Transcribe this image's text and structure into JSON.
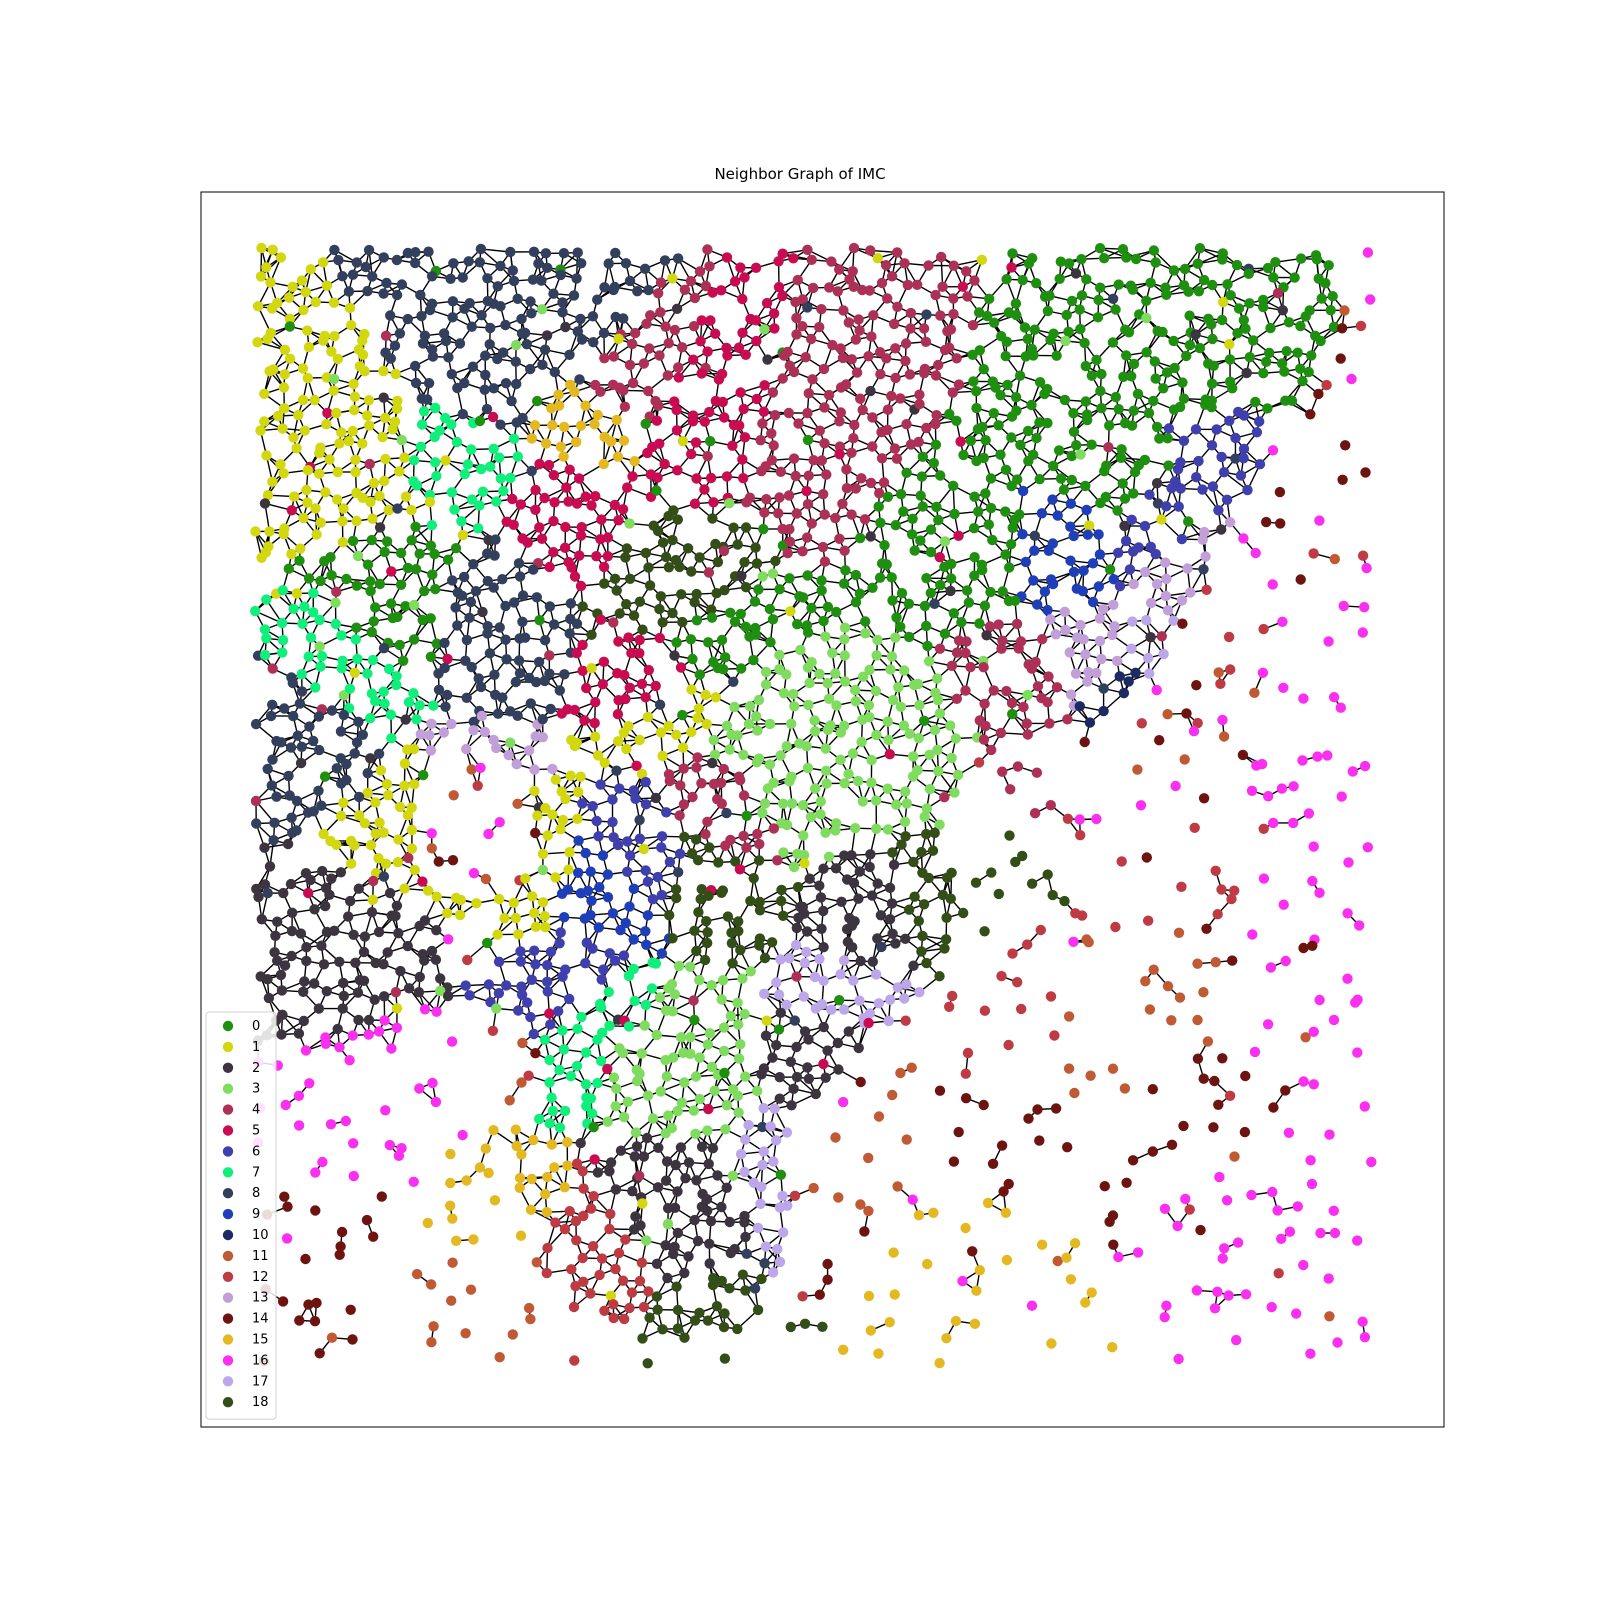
{
  "chart_data": {
    "type": "scatter",
    "title": "Neighbor Graph of IMC",
    "xlabel": "",
    "ylabel": "",
    "xlim": [
      0,
      100
    ],
    "ylim": [
      0,
      100
    ],
    "grid": false,
    "axis_ticks": false,
    "legend_placement": "lower-left",
    "edge_color": "#000000",
    "series": [
      {
        "name": "0",
        "color": "#1f8f0f"
      },
      {
        "name": "1",
        "color": "#d2d70f"
      },
      {
        "name": "2",
        "color": "#3c3540"
      },
      {
        "name": "3",
        "color": "#7fdc5e"
      },
      {
        "name": "4",
        "color": "#ad3057"
      },
      {
        "name": "5",
        "color": "#c90b52"
      },
      {
        "name": "6",
        "color": "#3f3fae"
      },
      {
        "name": "7",
        "color": "#10ef7c"
      },
      {
        "name": "8",
        "color": "#323f5d"
      },
      {
        "name": "9",
        "color": "#1e3fb8"
      },
      {
        "name": "10",
        "color": "#1b2a62"
      },
      {
        "name": "11",
        "color": "#c05a34"
      },
      {
        "name": "12",
        "color": "#be3b44"
      },
      {
        "name": "13",
        "color": "#c29fd8"
      },
      {
        "name": "14",
        "color": "#6e1410"
      },
      {
        "name": "15",
        "color": "#e3b820"
      },
      {
        "name": "16",
        "color": "#fa2ff0"
      },
      {
        "name": "17",
        "color": "#bca7ea"
      },
      {
        "name": "18",
        "color": "#344e18"
      }
    ],
    "regions": [
      {
        "label": 0,
        "centers": [
          [
            14,
            32
          ],
          [
            40,
            36
          ],
          [
            63,
            26
          ],
          [
            75,
            20
          ],
          [
            88,
            14
          ]
        ]
      },
      {
        "label": 1,
        "centers": [
          [
            10,
            18
          ],
          [
            15,
            51
          ],
          [
            23,
            55
          ],
          [
            38,
            40
          ]
        ]
      },
      {
        "label": 2,
        "centers": [
          [
            52,
            71
          ],
          [
            38,
            87
          ],
          [
            56,
            60
          ],
          [
            8,
            63
          ]
        ]
      },
      {
        "label": 3,
        "centers": [
          [
            47,
            48
          ],
          [
            38,
            71
          ],
          [
            44,
            42
          ],
          [
            57,
            45
          ]
        ]
      },
      {
        "label": 4,
        "centers": [
          [
            33,
            12
          ],
          [
            50,
            17
          ],
          [
            42,
            50
          ],
          [
            70,
            39
          ]
        ]
      },
      {
        "label": 5,
        "centers": [
          [
            28,
            23
          ],
          [
            37,
            38
          ],
          [
            40,
            15
          ]
        ]
      },
      {
        "label": 6,
        "centers": [
          [
            80,
            26
          ],
          [
            88,
            15
          ],
          [
            29,
            66
          ],
          [
            35,
            55
          ]
        ]
      },
      {
        "label": 7,
        "centers": [
          [
            18,
            18
          ],
          [
            8,
            39
          ],
          [
            30,
            67
          ]
        ]
      },
      {
        "label": 8,
        "centers": [
          [
            20,
            12
          ],
          [
            6,
            42
          ],
          [
            20,
            33
          ],
          [
            28,
            8
          ]
        ]
      },
      {
        "label": 9,
        "centers": [
          [
            32,
            58
          ],
          [
            73,
            26
          ]
        ]
      },
      {
        "label": 10,
        "centers": [
          [
            76,
            40
          ],
          [
            83,
            41
          ]
        ]
      },
      {
        "label": 11,
        "centers": [
          [
            75,
            73
          ],
          [
            52,
            83
          ],
          [
            20,
            90
          ],
          [
            84,
            63
          ]
        ]
      },
      {
        "label": 12,
        "centers": [
          [
            67,
            70
          ],
          [
            84,
            58
          ],
          [
            31,
            92
          ]
        ]
      },
      {
        "label": 13,
        "centers": [
          [
            74,
            38
          ],
          [
            82,
            29
          ],
          [
            18,
            50
          ]
        ]
      },
      {
        "label": 14,
        "centers": [
          [
            85,
            62
          ],
          [
            81,
            78
          ],
          [
            8,
            93
          ],
          [
            68,
            77
          ]
        ]
      },
      {
        "label": 15,
        "centers": [
          [
            29,
            16
          ],
          [
            62,
            92
          ],
          [
            20,
            88
          ]
        ]
      },
      {
        "label": 16,
        "centers": [
          [
            88,
            87
          ],
          [
            90,
            62
          ],
          [
            11,
            75
          ],
          [
            96,
            45
          ]
        ]
      },
      {
        "label": 17,
        "centers": [
          [
            49,
            84
          ],
          [
            53,
            68
          ],
          [
            82,
            36
          ]
        ]
      },
      {
        "label": 18,
        "centers": [
          [
            37,
            31
          ],
          [
            40,
            56
          ],
          [
            60,
            59
          ],
          [
            39,
            96
          ]
        ]
      }
    ]
  }
}
